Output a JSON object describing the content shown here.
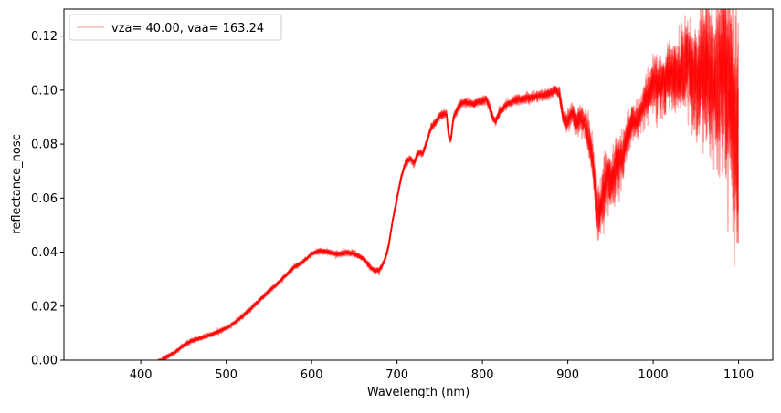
{
  "chart_data": {
    "type": "line",
    "title": "",
    "xlabel": "Wavelength (nm)",
    "ylabel": "reflectance_nosc",
    "xlim": [
      310,
      1140
    ],
    "ylim": [
      0,
      0.13
    ],
    "x_ticks": [
      400,
      500,
      600,
      700,
      800,
      900,
      1000,
      1100
    ],
    "y_ticks": [
      0.0,
      0.02,
      0.04,
      0.06,
      0.08,
      0.1,
      0.12
    ],
    "y_tick_labels": [
      "0.00",
      "0.02",
      "0.04",
      "0.06",
      "0.08",
      "0.10",
      "0.12"
    ],
    "grid": false,
    "legend_position": "top-left",
    "series": [
      {
        "name": "vza= 40.00, vaa= 163.24",
        "color": "#ff0000",
        "alpha": 0.3,
        "x": [
          420,
          425,
          430,
          440,
          450,
          460,
          470,
          480,
          490,
          500,
          510,
          520,
          530,
          540,
          550,
          560,
          570,
          580,
          590,
          600,
          610,
          620,
          630,
          640,
          650,
          660,
          670,
          675,
          680,
          685,
          690,
          695,
          700,
          705,
          710,
          715,
          720,
          725,
          730,
          735,
          740,
          745,
          750,
          755,
          758,
          760,
          763,
          766,
          770,
          775,
          780,
          790,
          800,
          805,
          810,
          815,
          820,
          830,
          840,
          850,
          860,
          870,
          880,
          885,
          890,
          895,
          900,
          905,
          910,
          915,
          920,
          925,
          930,
          933,
          936,
          939,
          942,
          946,
          950,
          955,
          960,
          965,
          970,
          975,
          980,
          985,
          990,
          1000,
          1010,
          1020,
          1030,
          1040,
          1050,
          1060,
          1070,
          1080,
          1090,
          1095,
          1100
        ],
        "y": [
          -0.0005,
          0.0002,
          0.0012,
          0.0028,
          0.0055,
          0.0072,
          0.0082,
          0.0092,
          0.0105,
          0.0118,
          0.0138,
          0.0165,
          0.0195,
          0.0225,
          0.0255,
          0.0283,
          0.0315,
          0.0345,
          0.0365,
          0.0393,
          0.0405,
          0.04,
          0.0392,
          0.0398,
          0.0395,
          0.0378,
          0.034,
          0.033,
          0.0335,
          0.0365,
          0.042,
          0.052,
          0.06,
          0.068,
          0.073,
          0.0745,
          0.073,
          0.077,
          0.0765,
          0.081,
          0.086,
          0.088,
          0.0905,
          0.091,
          0.0915,
          0.084,
          0.081,
          0.09,
          0.0925,
          0.095,
          0.0955,
          0.095,
          0.096,
          0.0965,
          0.092,
          0.088,
          0.092,
          0.095,
          0.0965,
          0.097,
          0.0975,
          0.098,
          0.099,
          0.1,
          0.099,
          0.089,
          0.088,
          0.0925,
          0.0875,
          0.09,
          0.087,
          0.082,
          0.072,
          0.06,
          0.054,
          0.056,
          0.063,
          0.07,
          0.065,
          0.072,
          0.073,
          0.076,
          0.083,
          0.089,
          0.088,
          0.092,
          0.096,
          0.102,
          0.103,
          0.106,
          0.104,
          0.109,
          0.104,
          0.108,
          0.102,
          0.11,
          0.1,
          0.09,
          0.08
        ],
        "noise": [
          0.0004,
          0.0004,
          0.0004,
          0.0004,
          0.0004,
          0.0004,
          0.0004,
          0.0004,
          0.0004,
          0.0004,
          0.0004,
          0.0004,
          0.0004,
          0.0004,
          0.0004,
          0.0004,
          0.0004,
          0.0004,
          0.0004,
          0.0004,
          0.0005,
          0.0005,
          0.0005,
          0.0005,
          0.0005,
          0.0005,
          0.0005,
          0.0005,
          0.0005,
          0.0005,
          0.0005,
          0.0005,
          0.0005,
          0.0005,
          0.0006,
          0.0006,
          0.0006,
          0.0006,
          0.0006,
          0.0006,
          0.0006,
          0.0006,
          0.0007,
          0.0007,
          0.0007,
          0.0007,
          0.0007,
          0.0007,
          0.0007,
          0.0007,
          0.0007,
          0.0007,
          0.0008,
          0.0008,
          0.0008,
          0.0008,
          0.0008,
          0.0008,
          0.0008,
          0.0008,
          0.0009,
          0.0009,
          0.001,
          0.001,
          0.0012,
          0.0014,
          0.0016,
          0.0018,
          0.002,
          0.0022,
          0.0025,
          0.003,
          0.0035,
          0.004,
          0.0045,
          0.0045,
          0.005,
          0.005,
          0.005,
          0.005,
          0.0045,
          0.004,
          0.0035,
          0.003,
          0.003,
          0.003,
          0.0035,
          0.0045,
          0.005,
          0.006,
          0.007,
          0.008,
          0.01,
          0.012,
          0.014,
          0.016,
          0.018,
          0.02,
          0.022
        ],
        "copies": 12
      }
    ]
  }
}
